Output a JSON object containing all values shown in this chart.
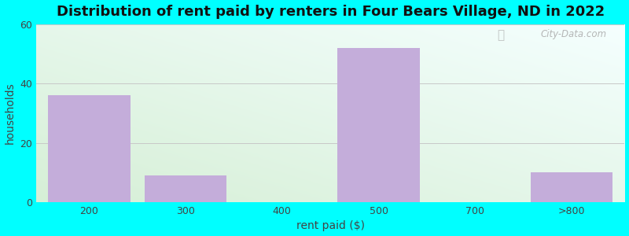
{
  "categories": [
    "200",
    "300",
    "400",
    "500",
    "700",
    ">800"
  ],
  "values": [
    36,
    9,
    0,
    52,
    0,
    10
  ],
  "bar_color": "#C4ADDA",
  "title": "Distribution of rent paid by renters in Four Bears Village, ND in 2022",
  "xlabel": "rent paid ($)",
  "ylabel": "households",
  "ylim": [
    0,
    60
  ],
  "yticks": [
    0,
    20,
    40,
    60
  ],
  "background_outer": "#00FFFF",
  "bg_top_left": "#d6efd6",
  "bg_bottom_right": "#f0faff",
  "watermark": "City-Data.com",
  "title_fontsize": 13,
  "axis_label_fontsize": 10,
  "tick_fontsize": 9
}
